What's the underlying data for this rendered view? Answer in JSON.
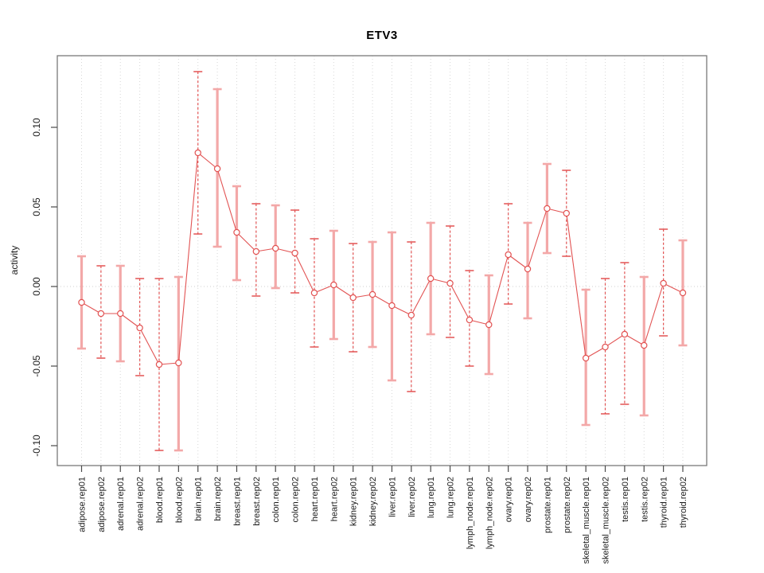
{
  "chart_data": {
    "type": "line",
    "title": "ETV3",
    "xlabel": "",
    "ylabel": "activity",
    "ylim": [
      -0.1125,
      0.145
    ],
    "yticks": [
      0.1,
      0.05,
      0.0,
      -0.05,
      -0.1
    ],
    "ytick_labels": [
      "0.10",
      "0.05",
      "0.00",
      "-0.05",
      "-0.10"
    ],
    "grid": "vertical dotted gridline per category, dotted horizontal line at y=0",
    "legend": "none",
    "marker": "open-circle",
    "categories": [
      "adipose.rep01",
      "adipose.rep02",
      "adrenal.rep01",
      "adrenal.rep02",
      "blood.rep01",
      "blood.rep02",
      "brain.rep01",
      "brain.rep02",
      "breast.rep01",
      "breast.rep02",
      "colon.rep01",
      "colon.rep02",
      "heart.rep01",
      "heart.rep02",
      "kidney.rep01",
      "kidney.rep02",
      "liver.rep01",
      "liver.rep02",
      "lung.rep01",
      "lung.rep02",
      "lymph_node.rep01",
      "lymph_node.rep02",
      "ovary.rep01",
      "ovary.rep02",
      "prostate.rep01",
      "prostate.rep02",
      "skeletal_muscle.rep01",
      "skeletal_muscle.rep02",
      "testis.rep01",
      "testis.rep02",
      "thyroid.rep01",
      "thyroid.rep02"
    ],
    "series": [
      {
        "name": "activity",
        "values": [
          -0.01,
          -0.017,
          -0.017,
          -0.026,
          -0.049,
          -0.048,
          0.084,
          0.074,
          0.034,
          0.022,
          0.024,
          0.021,
          -0.004,
          0.001,
          -0.007,
          -0.005,
          -0.012,
          -0.018,
          0.005,
          0.002,
          -0.021,
          -0.024,
          0.02,
          0.011,
          0.049,
          0.046,
          -0.045,
          -0.038,
          -0.03,
          -0.037,
          0.002,
          -0.004
        ],
        "err_hi": [
          0.019,
          0.013,
          0.013,
          0.005,
          0.005,
          0.006,
          0.135,
          0.124,
          0.063,
          0.052,
          0.051,
          0.048,
          0.03,
          0.035,
          0.027,
          0.028,
          0.034,
          0.028,
          0.04,
          0.038,
          0.01,
          0.007,
          0.052,
          0.04,
          0.077,
          0.073,
          -0.002,
          0.005,
          0.015,
          0.006,
          0.036,
          0.029
        ],
        "err_lo": [
          -0.039,
          -0.045,
          -0.047,
          -0.056,
          -0.103,
          -0.103,
          0.033,
          0.025,
          0.004,
          -0.006,
          -0.001,
          -0.004,
          -0.038,
          -0.033,
          -0.041,
          -0.038,
          -0.059,
          -0.066,
          -0.03,
          -0.032,
          -0.05,
          -0.055,
          -0.011,
          -0.02,
          0.021,
          0.019,
          -0.087,
          -0.08,
          -0.074,
          -0.081,
          -0.031,
          -0.037
        ],
        "bar_styles": [
          "solid",
          "dashed",
          "solid",
          "dashed",
          "dashed",
          "solid",
          "dashed",
          "solid",
          "solid",
          "dashed",
          "solid",
          "dashed",
          "dashed",
          "solid",
          "dashed",
          "solid",
          "solid",
          "dashed",
          "solid",
          "dashed",
          "dashed",
          "solid",
          "dashed",
          "solid",
          "solid",
          "dashed",
          "solid",
          "dashed",
          "dashed",
          "solid",
          "dashed",
          "solid"
        ]
      }
    ],
    "colors": {
      "line_red": "#e25353",
      "solid_bar_pink": "#f3a8a8",
      "marker_fill": "#ffffff",
      "grid_gray": "#d7d7d7",
      "zero_line_gray": "#cfcfcf",
      "box_gray": "#7a7a7a",
      "tick_gray": "#4a4a4a",
      "text_color": "#1a1a1a",
      "background": "#ffffff"
    }
  }
}
